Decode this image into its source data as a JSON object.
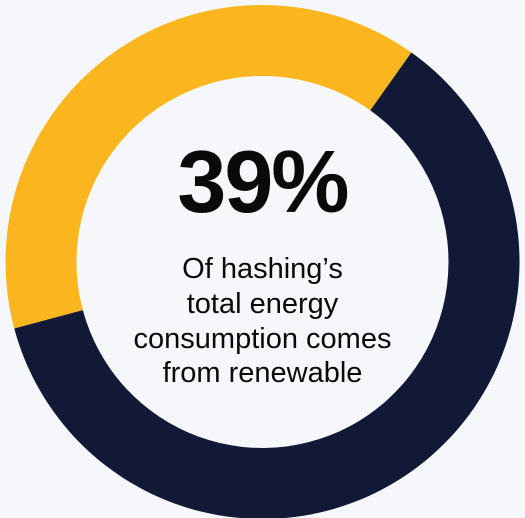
{
  "chart_data": {
    "type": "pie",
    "variant": "donut",
    "value_percent": 39,
    "slices": [
      {
        "value": 39,
        "color": "#fbb51f"
      },
      {
        "value": 61,
        "color": "#111936"
      }
    ],
    "center_value_label": "39%",
    "caption_lines": [
      "Of hashing’s",
      "total energy",
      "consumption comes",
      "from renewable"
    ]
  }
}
